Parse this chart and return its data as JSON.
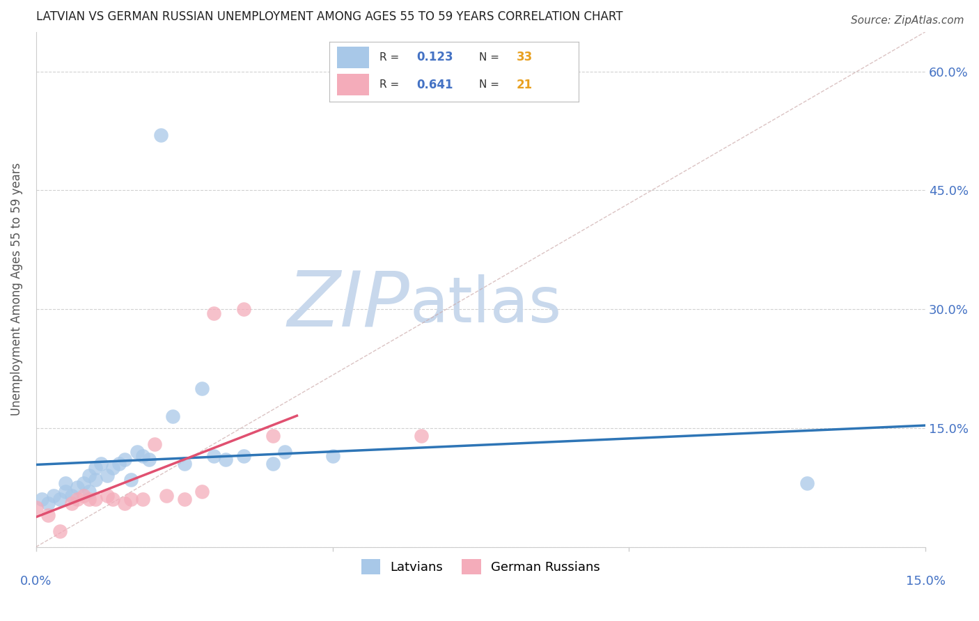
{
  "title": "LATVIAN VS GERMAN RUSSIAN UNEMPLOYMENT AMONG AGES 55 TO 59 YEARS CORRELATION CHART",
  "source": "Source: ZipAtlas.com",
  "ylabel": "Unemployment Among Ages 55 to 59 years",
  "latvian_R": "0.123",
  "latvian_N": "33",
  "german_russian_R": "0.641",
  "german_russian_N": "21",
  "latvian_color": "#A8C8E8",
  "german_russian_color": "#F4ACBA",
  "latvian_line_color": "#2E75B6",
  "german_russian_line_color": "#E05070",
  "watermark_zip": "ZIP",
  "watermark_atlas": "atlas",
  "watermark_color_zip": "#C8D8EC",
  "watermark_color_atlas": "#C8D8EC",
  "background_color": "#FFFFFF",
  "xlim": [
    0.0,
    0.15
  ],
  "ylim": [
    0.0,
    0.65
  ],
  "latvians_x": [
    0.001,
    0.002,
    0.003,
    0.004,
    0.005,
    0.005,
    0.006,
    0.007,
    0.008,
    0.009,
    0.009,
    0.01,
    0.01,
    0.011,
    0.012,
    0.013,
    0.014,
    0.015,
    0.016,
    0.017,
    0.018,
    0.019,
    0.021,
    0.023,
    0.025,
    0.028,
    0.03,
    0.032,
    0.035,
    0.04,
    0.042,
    0.05,
    0.13
  ],
  "latvians_y": [
    0.06,
    0.055,
    0.065,
    0.06,
    0.07,
    0.08,
    0.065,
    0.075,
    0.08,
    0.07,
    0.09,
    0.1,
    0.085,
    0.105,
    0.09,
    0.1,
    0.105,
    0.11,
    0.085,
    0.12,
    0.115,
    0.11,
    0.52,
    0.165,
    0.105,
    0.2,
    0.115,
    0.11,
    0.115,
    0.105,
    0.12,
    0.115,
    0.08
  ],
  "german_russians_x": [
    0.0,
    0.002,
    0.004,
    0.006,
    0.007,
    0.008,
    0.009,
    0.01,
    0.012,
    0.013,
    0.015,
    0.016,
    0.018,
    0.02,
    0.022,
    0.025,
    0.028,
    0.03,
    0.035,
    0.04,
    0.065
  ],
  "german_russians_y": [
    0.05,
    0.04,
    0.02,
    0.055,
    0.06,
    0.065,
    0.06,
    0.06,
    0.065,
    0.06,
    0.055,
    0.06,
    0.06,
    0.13,
    0.065,
    0.06,
    0.07,
    0.295,
    0.3,
    0.14,
    0.14
  ],
  "N_color": "#E8A020",
  "R_label_color": "#4472C4",
  "legend_box_color": "#E8E8F0"
}
